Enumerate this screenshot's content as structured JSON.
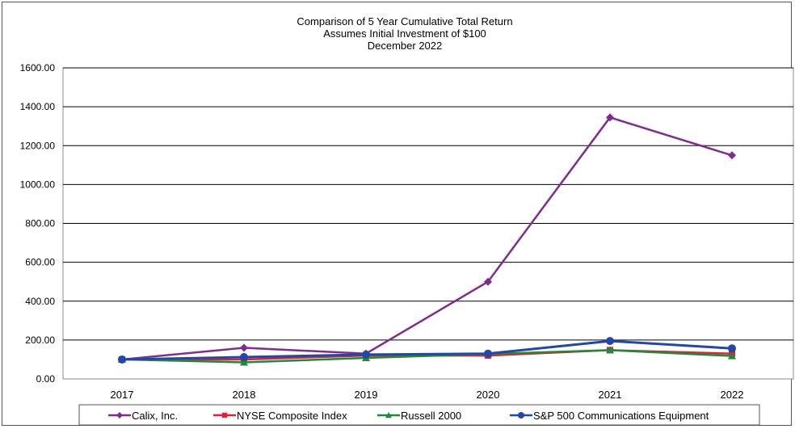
{
  "chart_data": {
    "type": "line",
    "title_lines": [
      "Comparison of 5 Year Cumulative Total Return",
      "Assumes Initial Investment of $100",
      "December 2022"
    ],
    "categories": [
      "2017",
      "2018",
      "2019",
      "2020",
      "2021",
      "2022"
    ],
    "y_ticks": [
      "0.00",
      "200.00",
      "400.00",
      "600.00",
      "800.00",
      "1000.00",
      "1200.00",
      "1400.00",
      "1600.00"
    ],
    "ylim": [
      0,
      1600
    ],
    "grid": true,
    "legend_position": "bottom",
    "series": [
      {
        "name": "Calix, Inc.",
        "color": "#7f2c8f",
        "marker": "diamond",
        "values": [
          100,
          160,
          130,
          500,
          1345,
          1150
        ]
      },
      {
        "name": "NYSE Composite Index",
        "color": "#e0203a",
        "marker": "square",
        "values": [
          100,
          100,
          120,
          120,
          148,
          130
        ]
      },
      {
        "name": "Russell 2000",
        "color": "#1f8a3a",
        "marker": "triangle",
        "values": [
          100,
          85,
          108,
          128,
          148,
          118
        ]
      },
      {
        "name": "S&P 500 Communications Equipment",
        "color": "#2446a6",
        "marker": "circle",
        "values": [
          100,
          112,
          125,
          130,
          195,
          157
        ]
      }
    ]
  }
}
